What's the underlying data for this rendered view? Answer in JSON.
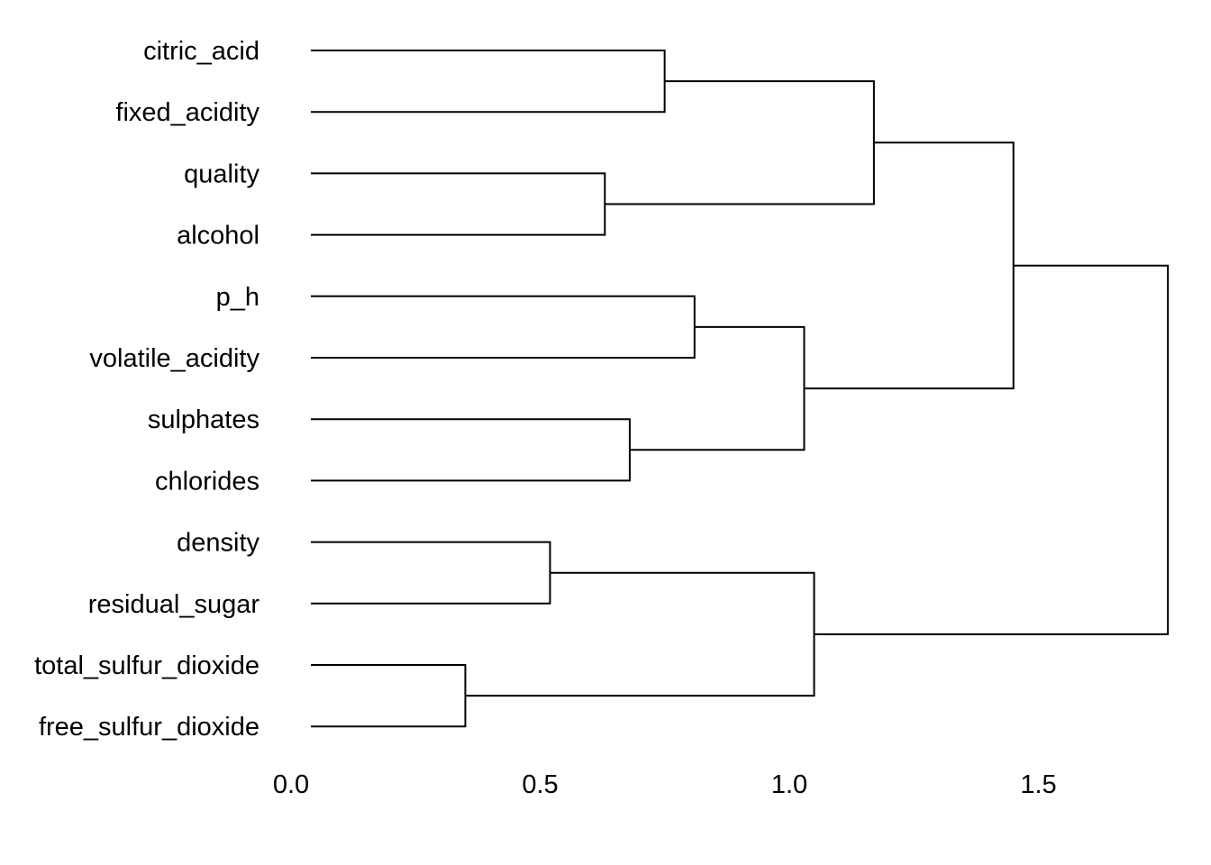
{
  "chart_data": {
    "type": "dendrogram",
    "orientation": "horizontal",
    "leaves": [
      "citric_acid",
      "fixed_acidity",
      "quality",
      "alcohol",
      "p_h",
      "volatile_acidity",
      "sulphates",
      "chlorides",
      "density",
      "residual_sugar",
      "total_sulfur_dioxide",
      "free_sulfur_dioxide"
    ],
    "merges": [
      {
        "id": "m1",
        "left": "citric_acid",
        "right": "fixed_acidity",
        "height": 0.71
      },
      {
        "id": "m2",
        "left": "quality",
        "right": "alcohol",
        "height": 0.59
      },
      {
        "id": "m3",
        "left": "m1",
        "right": "m2",
        "height": 1.13
      },
      {
        "id": "m4",
        "left": "p_h",
        "right": "volatile_acidity",
        "height": 0.77
      },
      {
        "id": "m5",
        "left": "sulphates",
        "right": "chlorides",
        "height": 0.64
      },
      {
        "id": "m6",
        "left": "m4",
        "right": "m5",
        "height": 0.99
      },
      {
        "id": "m7",
        "left": "m3",
        "right": "m6",
        "height": 1.41
      },
      {
        "id": "m8",
        "left": "density",
        "right": "residual_sugar",
        "height": 0.48
      },
      {
        "id": "m9",
        "left": "total_sulfur_dioxide",
        "right": "free_sulfur_dioxide",
        "height": 0.31
      },
      {
        "id": "m10",
        "left": "m8",
        "right": "m9",
        "height": 1.01
      },
      {
        "id": "m11",
        "left": "m7",
        "right": "m10",
        "height": 1.72
      }
    ],
    "x_ticks": [
      "0.0",
      "0.5",
      "1.0",
      "1.5"
    ],
    "x_tick_values": [
      0,
      0.5,
      1.0,
      1.5
    ],
    "xlim": [
      0,
      1.72
    ],
    "grid": false,
    "title": "",
    "xlabel": "",
    "ylabel": ""
  }
}
